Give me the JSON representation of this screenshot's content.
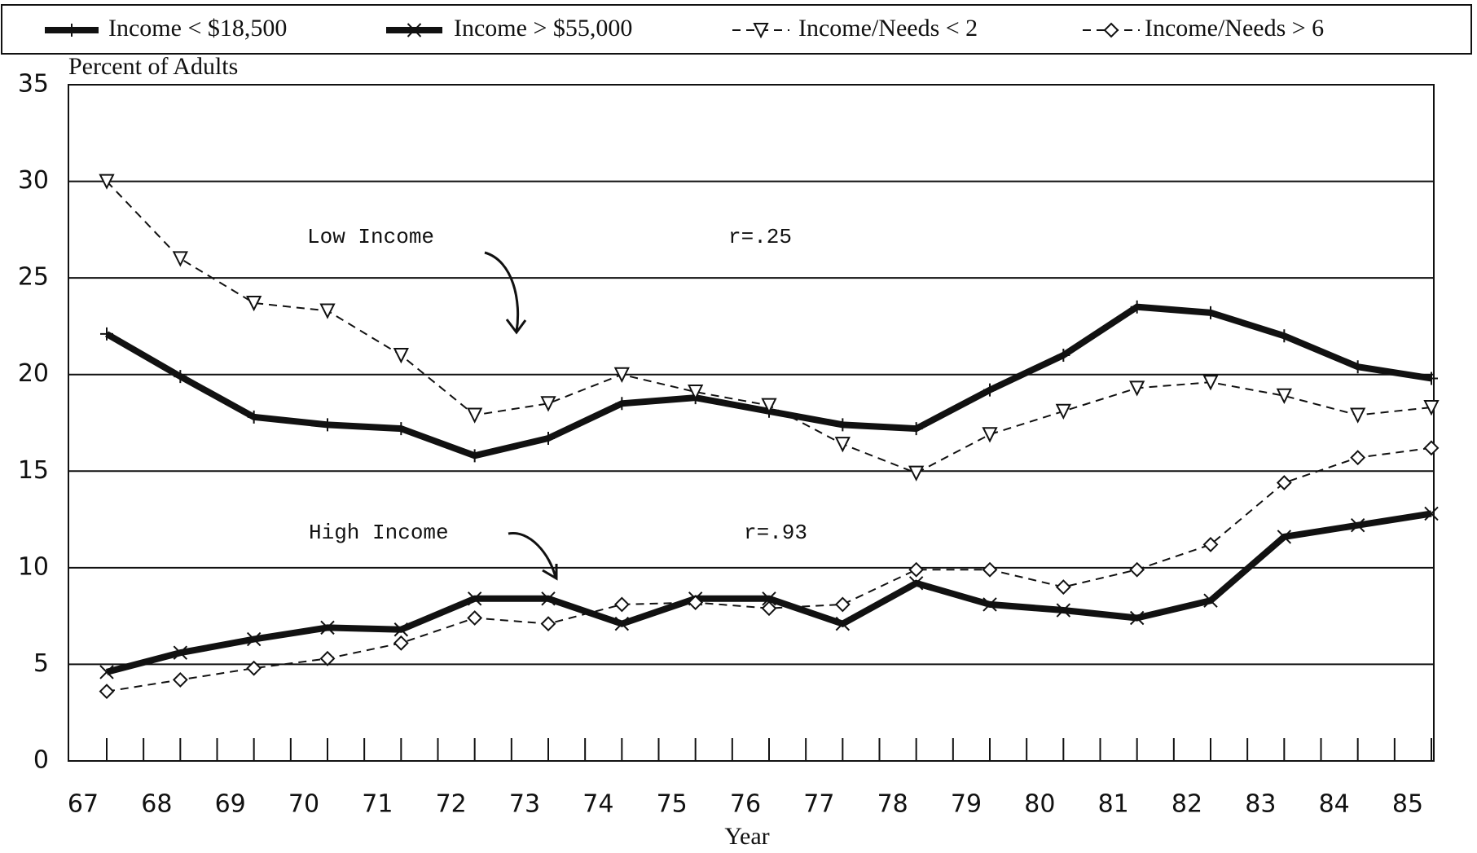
{
  "chart_data": {
    "type": "line",
    "y_label": "Percent of Adults",
    "x_label": "Year",
    "categories": [
      "67",
      "68",
      "69",
      "70",
      "71",
      "72",
      "73",
      "74",
      "75",
      "76",
      "77",
      "78",
      "79",
      "80",
      "81",
      "82",
      "83",
      "84",
      "85"
    ],
    "series": [
      {
        "name": "Income < $18,500",
        "color": "#111111",
        "style": "thick",
        "marker": "plus",
        "values": [
          22.1,
          19.9,
          17.8,
          17.4,
          17.2,
          15.8,
          16.7,
          18.5,
          18.8,
          18.1,
          17.4,
          17.2,
          19.2,
          21.0,
          23.5,
          23.2,
          22.0,
          20.4,
          19.8
        ]
      },
      {
        "name": "Income > $55,000",
        "color": "#111111",
        "style": "thick",
        "marker": "cross",
        "values": [
          4.6,
          5.6,
          6.3,
          6.9,
          6.8,
          8.4,
          8.4,
          7.1,
          8.4,
          8.4,
          7.1,
          9.2,
          8.1,
          7.8,
          7.4,
          8.3,
          11.6,
          12.2,
          12.8
        ]
      },
      {
        "name": "Income/Needs < 2",
        "color": "#111111",
        "style": "dashed",
        "marker": "triangle",
        "values": [
          30.0,
          26.0,
          23.7,
          23.3,
          21.0,
          17.9,
          18.5,
          20.0,
          19.1,
          18.4,
          16.4,
          14.9,
          16.9,
          18.1,
          19.3,
          19.6,
          18.9,
          17.9,
          18.3
        ]
      },
      {
        "name": "Income/Needs > 6",
        "color": "#111111",
        "style": "dashed",
        "marker": "diamond",
        "values": [
          3.6,
          4.2,
          4.8,
          5.3,
          6.1,
          7.4,
          7.1,
          8.1,
          8.2,
          7.9,
          8.1,
          9.9,
          9.9,
          9.0,
          9.9,
          11.2,
          14.4,
          15.7,
          16.2
        ]
      }
    ],
    "annotations": [
      "Low Income",
      "r=.25",
      "High Income",
      "r=.93"
    ],
    "ylim": [
      0,
      35
    ],
    "yticks": [
      0,
      5,
      10,
      15,
      20,
      25,
      30,
      35
    ],
    "grid": true
  }
}
